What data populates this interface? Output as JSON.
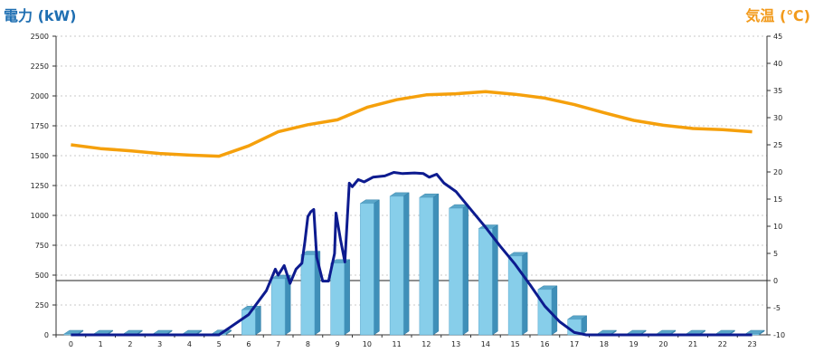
{
  "chart_data": {
    "type": "bar",
    "left_axis_label": "電力 (kW)",
    "right_axis_label": "気温 (℃)",
    "left_axis_color": "#1f6fb2",
    "right_axis_color": "#f29a1b",
    "ylim_left": [
      0,
      2500
    ],
    "ylim_right": [
      -10,
      45
    ],
    "left_ticks": [
      0,
      250,
      500,
      750,
      1000,
      1250,
      1500,
      1750,
      2000,
      2250,
      2500
    ],
    "right_ticks": [
      -10,
      -5,
      0,
      5,
      10,
      15,
      20,
      25,
      30,
      35,
      40,
      45
    ],
    "x_ticks": [
      "0",
      "1",
      "2",
      "3",
      "4",
      "5",
      "6",
      "7",
      "8",
      "9",
      "10",
      "11",
      "12",
      "13",
      "14",
      "15",
      "16",
      "17",
      "18",
      "19",
      "20",
      "21",
      "22",
      "23"
    ],
    "grid": true,
    "bar_color": "#87ceea",
    "power_line_color": "#0d1b8f",
    "temp_line_color": "#f5a00c",
    "bars": [
      0,
      0,
      0,
      0,
      0,
      10,
      210,
      470,
      670,
      600,
      1100,
      1160,
      1150,
      1060,
      890,
      660,
      380,
      130,
      0,
      0,
      0,
      0,
      0,
      0
    ],
    "power_line": [
      [
        0,
        0
      ],
      [
        1,
        0
      ],
      [
        2,
        0
      ],
      [
        3,
        0
      ],
      [
        4,
        0
      ],
      [
        5,
        0
      ],
      [
        5.3,
        50
      ],
      [
        6,
        170
      ],
      [
        6.6,
        370
      ],
      [
        6.9,
        550
      ],
      [
        7,
        500
      ],
      [
        7.2,
        580
      ],
      [
        7.4,
        430
      ],
      [
        7.6,
        550
      ],
      [
        7.8,
        600
      ],
      [
        7.9,
        780
      ],
      [
        8,
        990
      ],
      [
        8.1,
        1030
      ],
      [
        8.2,
        1050
      ],
      [
        8.3,
        650
      ],
      [
        8.5,
        450
      ],
      [
        8.7,
        450
      ],
      [
        8.9,
        680
      ],
      [
        8.95,
        1020
      ],
      [
        9.1,
        800
      ],
      [
        9.25,
        610
      ],
      [
        9.4,
        1270
      ],
      [
        9.5,
        1240
      ],
      [
        9.7,
        1300
      ],
      [
        9.9,
        1280
      ],
      [
        10.2,
        1320
      ],
      [
        10.6,
        1330
      ],
      [
        10.9,
        1360
      ],
      [
        11.2,
        1350
      ],
      [
        11.6,
        1355
      ],
      [
        11.9,
        1350
      ],
      [
        12.1,
        1320
      ],
      [
        12.35,
        1345
      ],
      [
        12.6,
        1270
      ],
      [
        13,
        1200
      ],
      [
        13.5,
        1050
      ],
      [
        14,
        900
      ],
      [
        14.5,
        740
      ],
      [
        15,
        590
      ],
      [
        15.5,
        420
      ],
      [
        16,
        240
      ],
      [
        16.5,
        110
      ],
      [
        17,
        20
      ],
      [
        17.4,
        0
      ],
      [
        18,
        0
      ],
      [
        23,
        0
      ]
    ],
    "temperature": [
      [
        0,
        25
      ],
      [
        1,
        24.3
      ],
      [
        2,
        23.9
      ],
      [
        3,
        23.4
      ],
      [
        4,
        23.1
      ],
      [
        5,
        22.9
      ],
      [
        6,
        24.8
      ],
      [
        7,
        27.4
      ],
      [
        8,
        28.7
      ],
      [
        9,
        29.6
      ],
      [
        10,
        31.9
      ],
      [
        11,
        33.3
      ],
      [
        12,
        34.2
      ],
      [
        13,
        34.4
      ],
      [
        14,
        34.8
      ],
      [
        15,
        34.3
      ],
      [
        16,
        33.6
      ],
      [
        17,
        32.4
      ],
      [
        18,
        30.9
      ],
      [
        19,
        29.5
      ],
      [
        20,
        28.6
      ],
      [
        21,
        28
      ],
      [
        22,
        27.8
      ],
      [
        23,
        27.4
      ]
    ]
  }
}
